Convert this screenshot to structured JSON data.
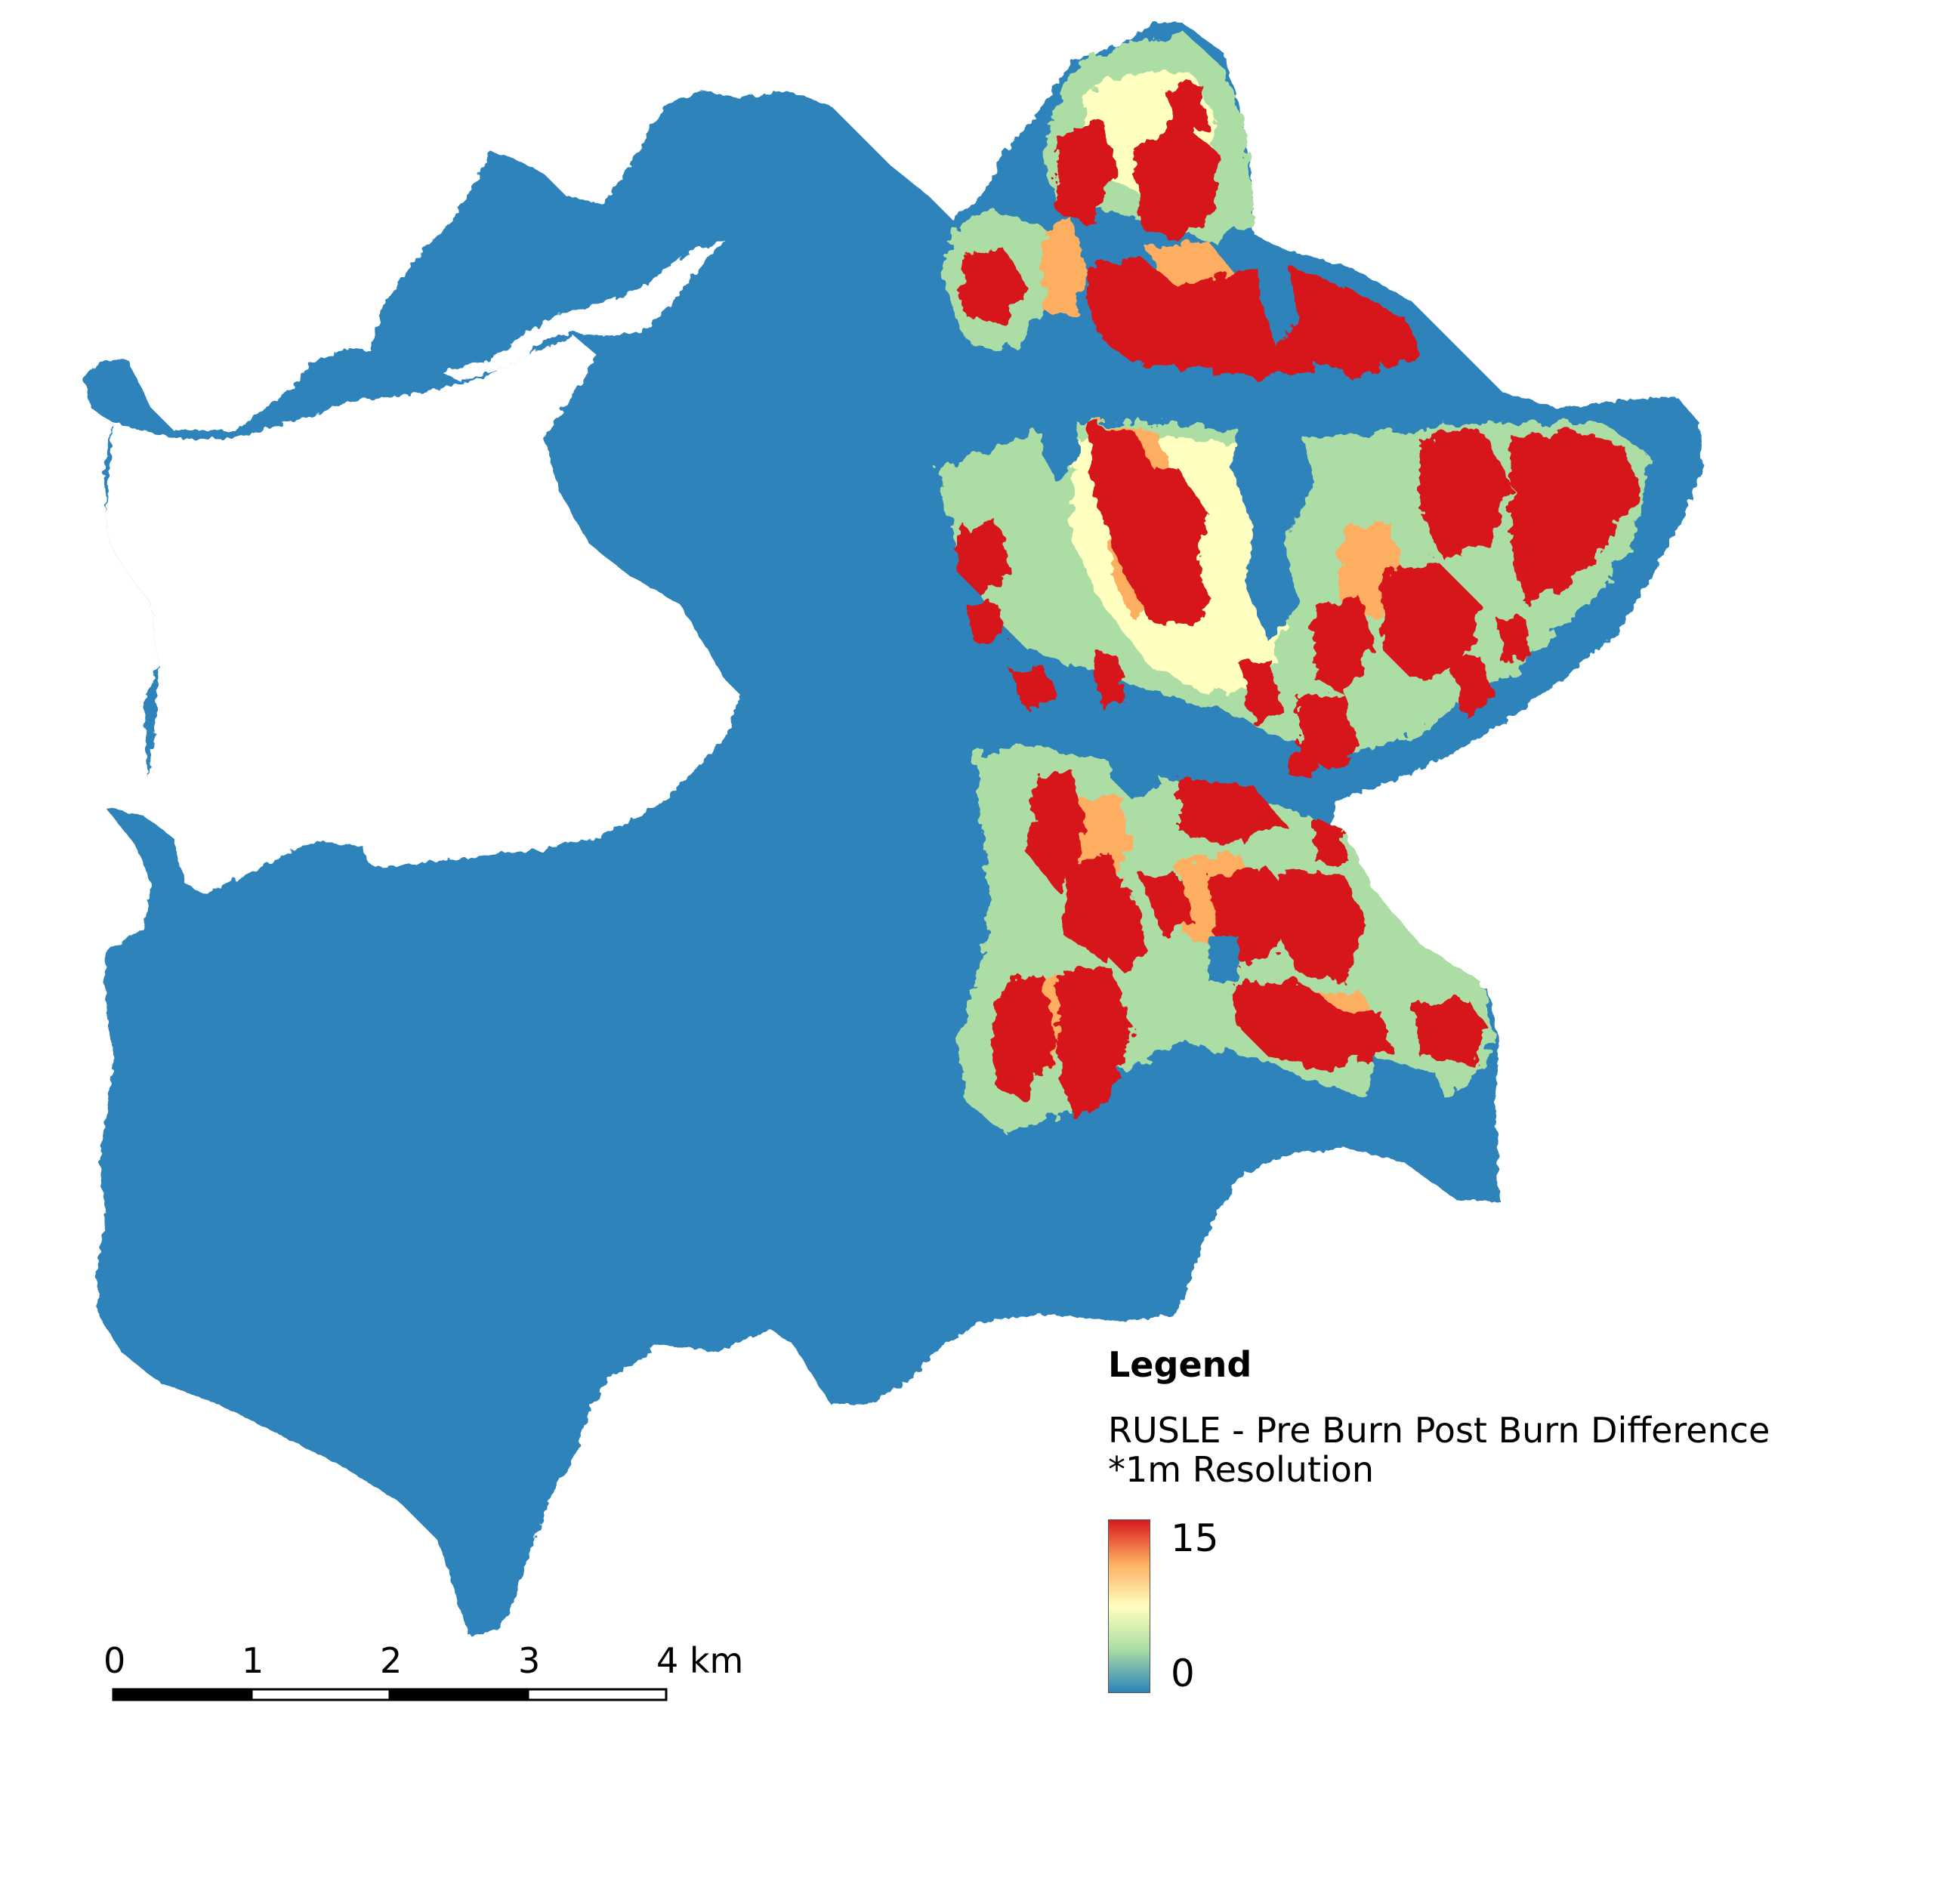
{
  "legend": {
    "title": "Legend",
    "layer_line1": "RUSLE - Pre Burn Post Burn Difference",
    "layer_line2": "*1m Resolution",
    "max_label": "15",
    "min_label": "0",
    "ramp_colors": [
      "#d7191c",
      "#fdae61",
      "#ffffbf",
      "#abdda4",
      "#2b83ba"
    ]
  },
  "scale_bar": {
    "labels": [
      "0",
      "1",
      "2",
      "3",
      "4 km"
    ]
  },
  "colors": {
    "watershed_base": "#2e83ba",
    "high_change": "#d7191c",
    "moderate_change": "#fdae61",
    "low_change": "#ffffbf",
    "slight_change": "#abdda4"
  }
}
